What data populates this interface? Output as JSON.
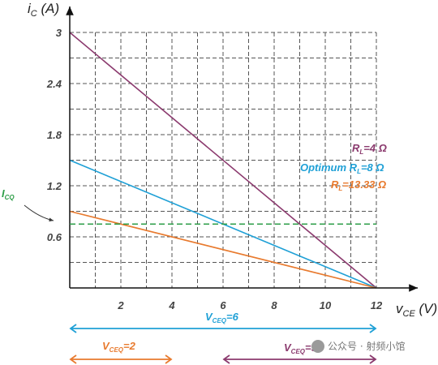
{
  "chart_data": {
    "type": "line",
    "xlabel": {
      "main": "v",
      "sub": "CE",
      "unit": " (V)"
    },
    "ylabel": {
      "main": "i",
      "sub": "C",
      "unit": " (A)"
    },
    "xlim": [
      0,
      13
    ],
    "ylim": [
      0,
      3.2
    ],
    "x_ticks": [
      2,
      4,
      6,
      8,
      10,
      12
    ],
    "x_tick_labels": [
      "2",
      "4",
      "6",
      "8",
      "10",
      "12"
    ],
    "y_ticks": [
      0.6,
      1.2,
      1.8,
      2.4,
      3
    ],
    "y_tick_labels": [
      "0.6",
      "1.2",
      "1.8",
      "2.4",
      "3"
    ],
    "grid": true,
    "series": [
      {
        "name": "R_L=4 Ω",
        "label_parts": [
          "R",
          "L",
          "=4 Ω"
        ],
        "color": "#8b3a6e",
        "x": [
          0,
          12
        ],
        "y": [
          3,
          0
        ]
      },
      {
        "name": "Optimum R_L=8 Ω",
        "label_parts": [
          "Optimum R",
          "L",
          "=8 Ω"
        ],
        "color": "#1fa0d6",
        "x": [
          0,
          12
        ],
        "y": [
          1.5,
          0
        ]
      },
      {
        "name": "R_L=13.33 Ω",
        "label_parts": [
          "R",
          "L",
          "=13.33 Ω"
        ],
        "color": "#e87a2e",
        "x": [
          0,
          12
        ],
        "y": [
          0.9,
          0
        ]
      }
    ],
    "icq": {
      "label_main": "I",
      "label_sub": "CQ",
      "y": 0.75,
      "color": "#2e9e48"
    },
    "ranges": [
      {
        "label_main": "V",
        "label_sub": "CEQ",
        "label_rest": "=6",
        "x": [
          0,
          12
        ],
        "color": "#1fa0d6"
      },
      {
        "label_main": "V",
        "label_sub": "CEQ",
        "label_rest": "=2",
        "x": [
          0,
          4
        ],
        "color": "#e87a2e"
      },
      {
        "label_main": "V",
        "label_sub": "CEQ",
        "label_rest": "=9",
        "x": [
          6,
          12
        ],
        "color": "#8b3a6e"
      }
    ]
  },
  "watermark": "公众号 · 射频小馆",
  "colors": {
    "grid": "#555555",
    "axis": "#111111"
  }
}
